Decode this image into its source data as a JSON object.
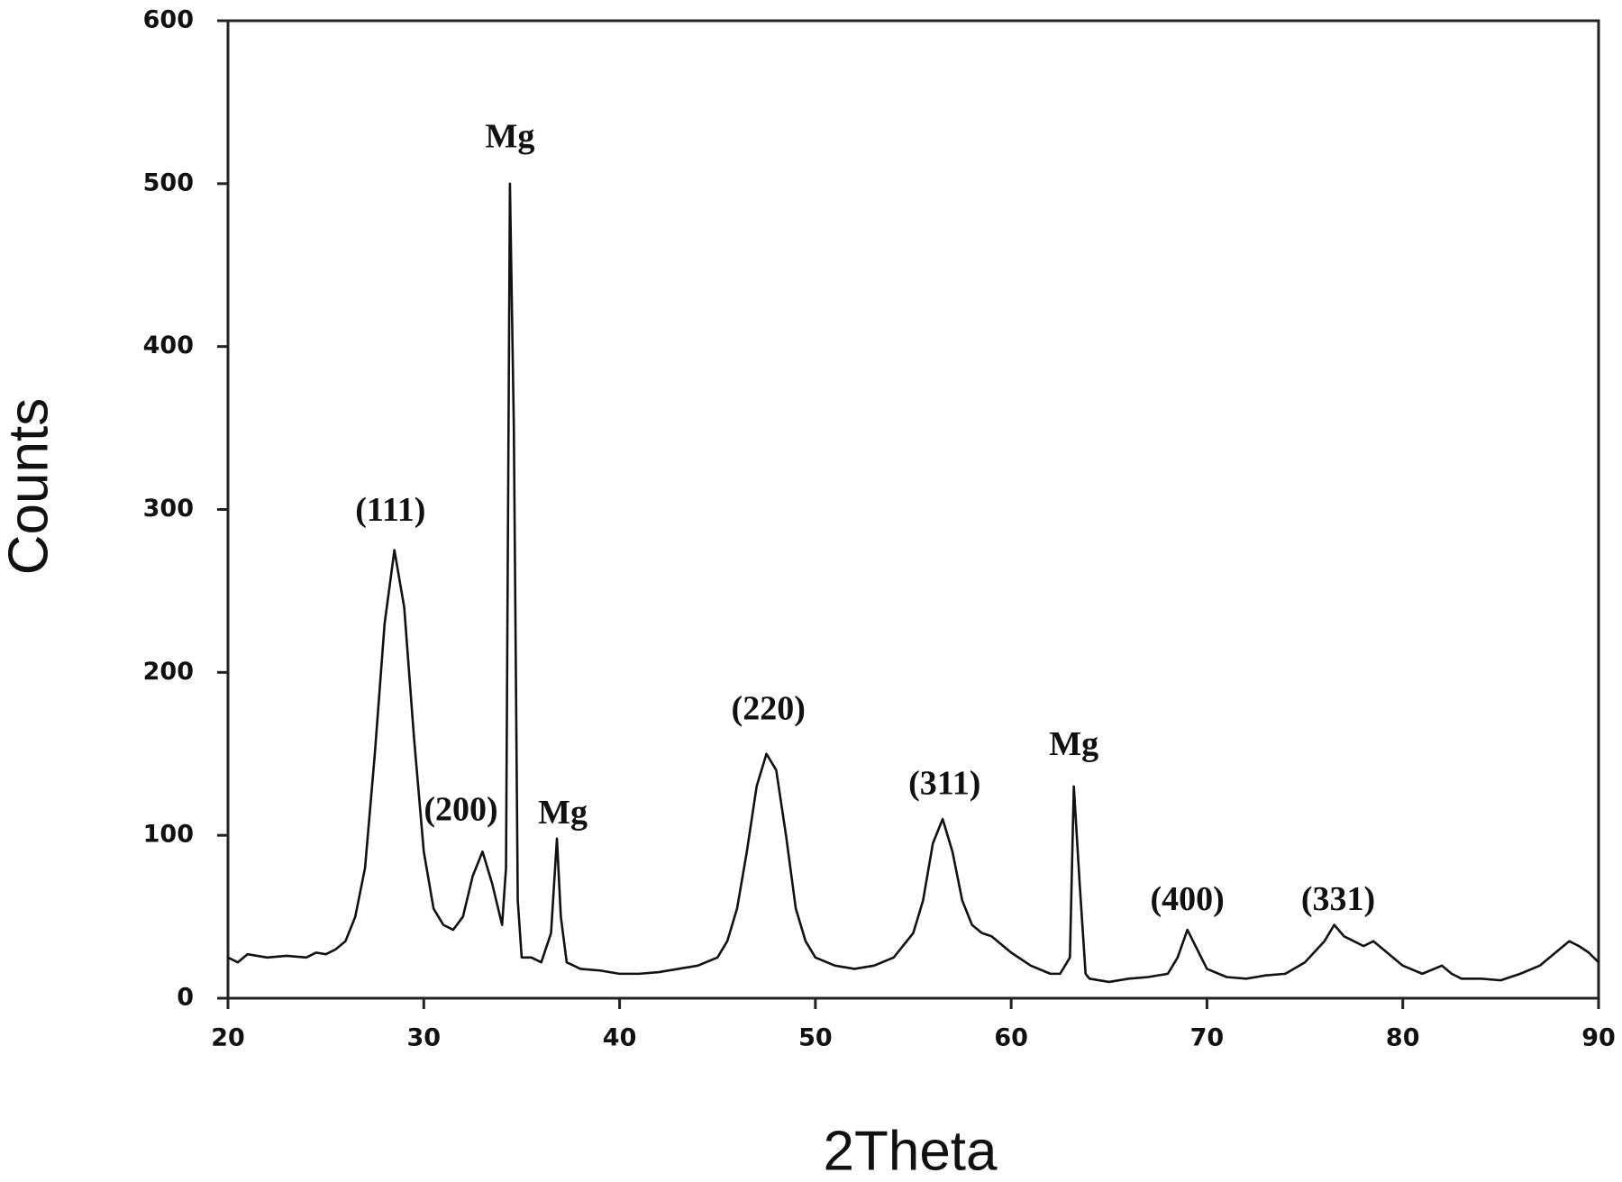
{
  "chart_data": {
    "type": "line",
    "xlabel": "2Theta",
    "ylabel": "Counts",
    "xlim": [
      20,
      90
    ],
    "ylim": [
      0,
      600
    ],
    "xticks": [
      20,
      30,
      40,
      50,
      60,
      70,
      80,
      90
    ],
    "yticks": [
      0,
      100,
      200,
      300,
      400,
      500,
      600
    ],
    "color": "#111111",
    "x": [
      20,
      20.5,
      21,
      22,
      23,
      24,
      24.5,
      25,
      25.5,
      26,
      26.5,
      27,
      27.5,
      28,
      28.5,
      29,
      29.5,
      30,
      30.5,
      31,
      31.5,
      32,
      32.5,
      33,
      33.5,
      34,
      34.2,
      34.4,
      34.6,
      34.8,
      35,
      35.5,
      36,
      36.5,
      36.8,
      37,
      37.3,
      38,
      39,
      40,
      41,
      42,
      43,
      44,
      45,
      45.5,
      46,
      46.5,
      47,
      47.5,
      48,
      48.5,
      49,
      49.5,
      50,
      51,
      52,
      53,
      54,
      55,
      55.5,
      56,
      56.5,
      57,
      57.5,
      58,
      58.5,
      59,
      60,
      61,
      62,
      62.5,
      63,
      63.2,
      63.5,
      63.8,
      64,
      65,
      66,
      67,
      68,
      68.5,
      69,
      69.5,
      70,
      71,
      72,
      73,
      74,
      75,
      76,
      76.5,
      77,
      77.5,
      78,
      78.5,
      79,
      80,
      81,
      82,
      82.5,
      83,
      84,
      85,
      86,
      87,
      88,
      88.5,
      89,
      89.5,
      90
    ],
    "values": [
      25,
      22,
      27,
      25,
      26,
      25,
      28,
      27,
      30,
      35,
      50,
      80,
      150,
      230,
      275,
      240,
      160,
      90,
      55,
      45,
      42,
      50,
      75,
      90,
      70,
      45,
      80,
      500,
      350,
      60,
      25,
      25,
      22,
      40,
      98,
      50,
      22,
      18,
      17,
      15,
      15,
      16,
      18,
      20,
      25,
      35,
      55,
      90,
      130,
      150,
      140,
      100,
      55,
      35,
      25,
      20,
      18,
      20,
      25,
      40,
      60,
      95,
      110,
      90,
      60,
      45,
      40,
      38,
      28,
      20,
      15,
      15,
      25,
      130,
      70,
      15,
      12,
      10,
      12,
      13,
      15,
      25,
      42,
      30,
      18,
      13,
      12,
      14,
      15,
      22,
      35,
      45,
      38,
      35,
      32,
      35,
      30,
      20,
      15,
      20,
      15,
      12,
      12,
      11,
      15,
      20,
      30,
      35,
      32,
      28,
      22
    ],
    "annotations": [
      {
        "text": "(111)",
        "x": 28.3,
        "y": 298
      },
      {
        "text": "Mg",
        "x": 34.4,
        "y": 527
      },
      {
        "text": "(200)",
        "x": 31.9,
        "y": 114
      },
      {
        "text": "Mg",
        "x": 37.1,
        "y": 112
      },
      {
        "text": "(220)",
        "x": 47.6,
        "y": 176
      },
      {
        "text": "(311)",
        "x": 56.6,
        "y": 130
      },
      {
        "text": "Mg",
        "x": 63.2,
        "y": 154
      },
      {
        "text": "(400)",
        "x": 69.0,
        "y": 59
      },
      {
        "text": "(331)",
        "x": 76.7,
        "y": 59
      }
    ]
  }
}
